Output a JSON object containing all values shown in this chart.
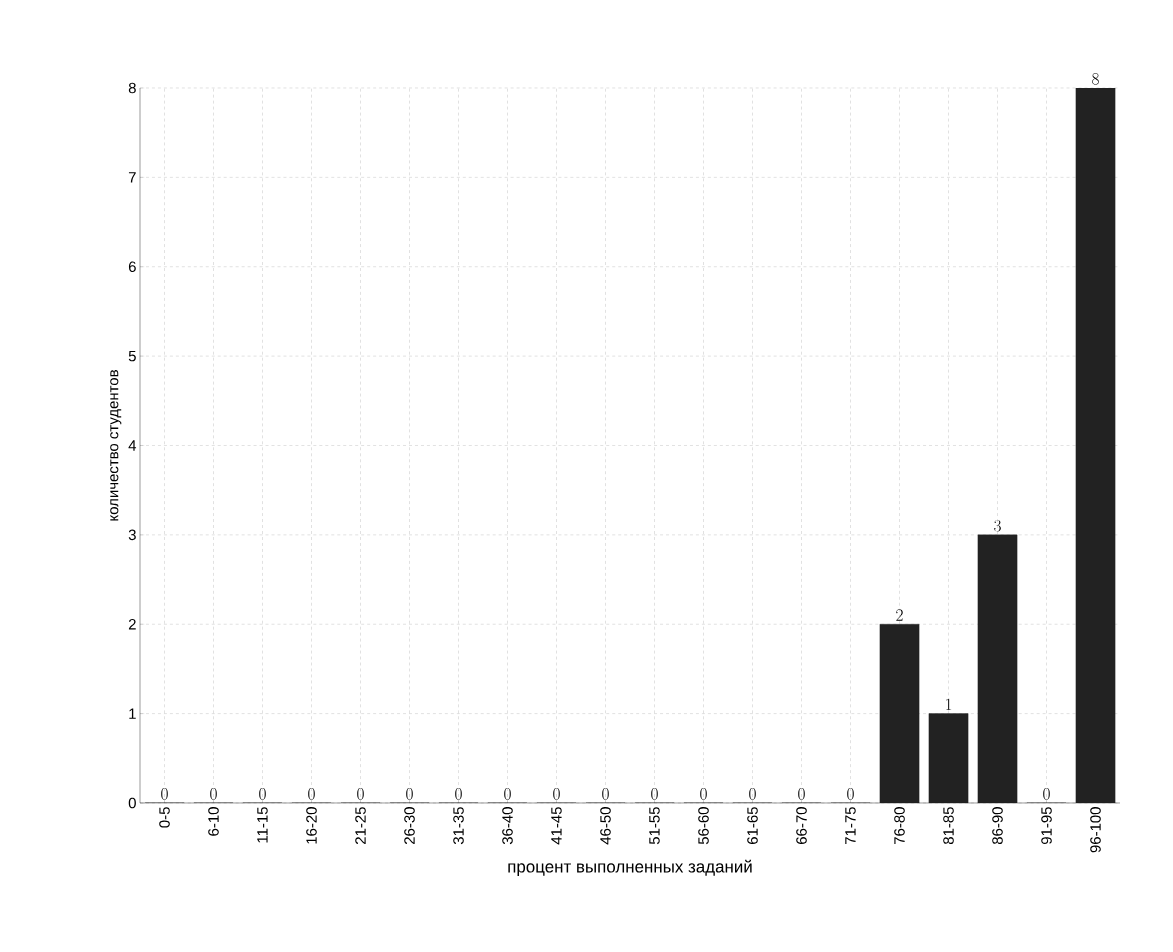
{
  "chart_data": {
    "type": "bar",
    "xlabel": "процент выполненных заданий",
    "ylabel": "количество студентов",
    "categories": [
      "0-5",
      "6-10",
      "11-15",
      "16-20",
      "21-25",
      "26-30",
      "31-35",
      "36-40",
      "41-45",
      "46-50",
      "51-55",
      "56-60",
      "61-65",
      "66-70",
      "71-75",
      "76-80",
      "81-85",
      "86-90",
      "91-95",
      "96-100"
    ],
    "values": [
      0,
      0,
      0,
      0,
      0,
      0,
      0,
      0,
      0,
      0,
      0,
      0,
      0,
      0,
      0,
      2,
      1,
      3,
      0,
      8
    ],
    "color": "#222222",
    "ylim": [
      0,
      8
    ],
    "yticks": [
      0,
      1,
      2,
      3,
      4,
      5,
      6,
      7,
      8
    ],
    "grid": true,
    "data_labels": true
  }
}
